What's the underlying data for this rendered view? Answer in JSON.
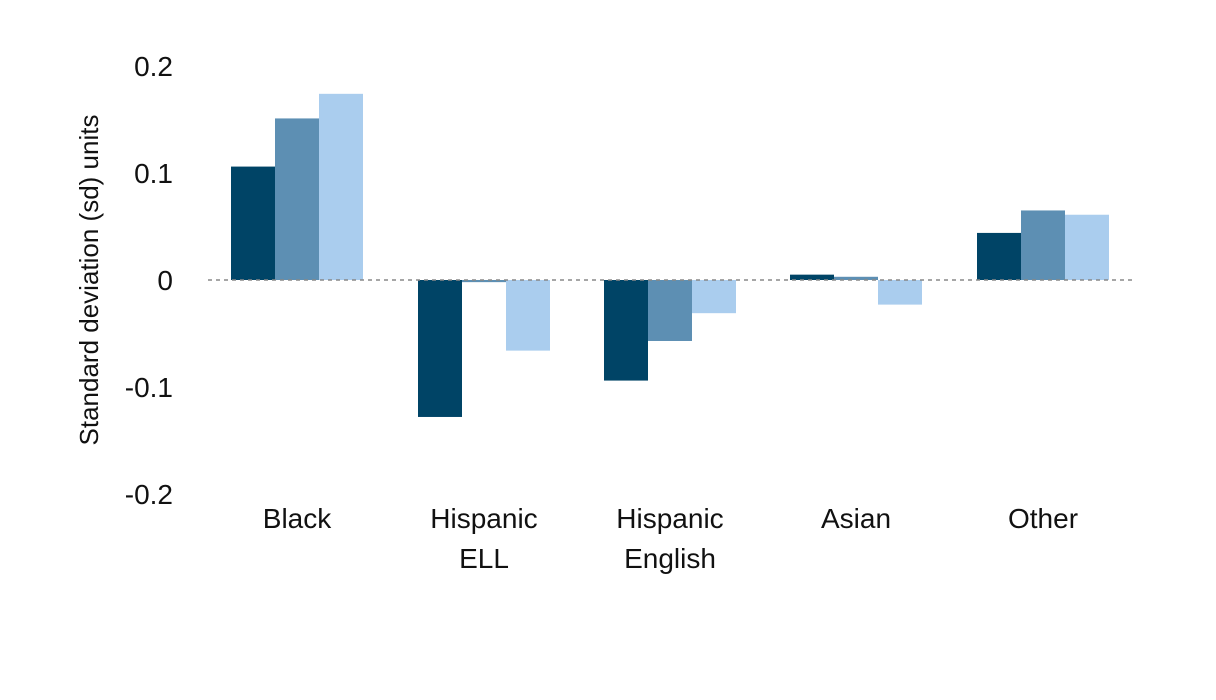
{
  "chart_data": {
    "type": "bar",
    "title": "",
    "xlabel": "",
    "ylabel": "Standard deviation (sd) units",
    "ylim": [
      -0.2,
      0.2
    ],
    "yticks": [
      0.2,
      0.1,
      0,
      -0.1,
      -0.2
    ],
    "ytick_labels": [
      "0.2",
      "0.1",
      "0",
      "-0.1",
      "-0.2"
    ],
    "categories": [
      [
        "Black"
      ],
      [
        "Hispanic",
        "ELL"
      ],
      [
        "Hispanic",
        "English"
      ],
      [
        "Asian"
      ],
      [
        "Other"
      ]
    ],
    "series": [
      {
        "values": [
          0.106,
          -0.128,
          -0.094,
          0.005,
          0.044
        ],
        "color": "#004466"
      },
      {
        "values": [
          0.151,
          -0.002,
          -0.057,
          0.003,
          0.065
        ],
        "color": "#5d8fb3"
      },
      {
        "values": [
          0.174,
          -0.066,
          -0.031,
          -0.023,
          0.061
        ],
        "color": "#aacdee"
      }
    ],
    "zero_line": {
      "style": "dotted",
      "color": "#888888"
    },
    "grid": false,
    "legend": "none"
  }
}
